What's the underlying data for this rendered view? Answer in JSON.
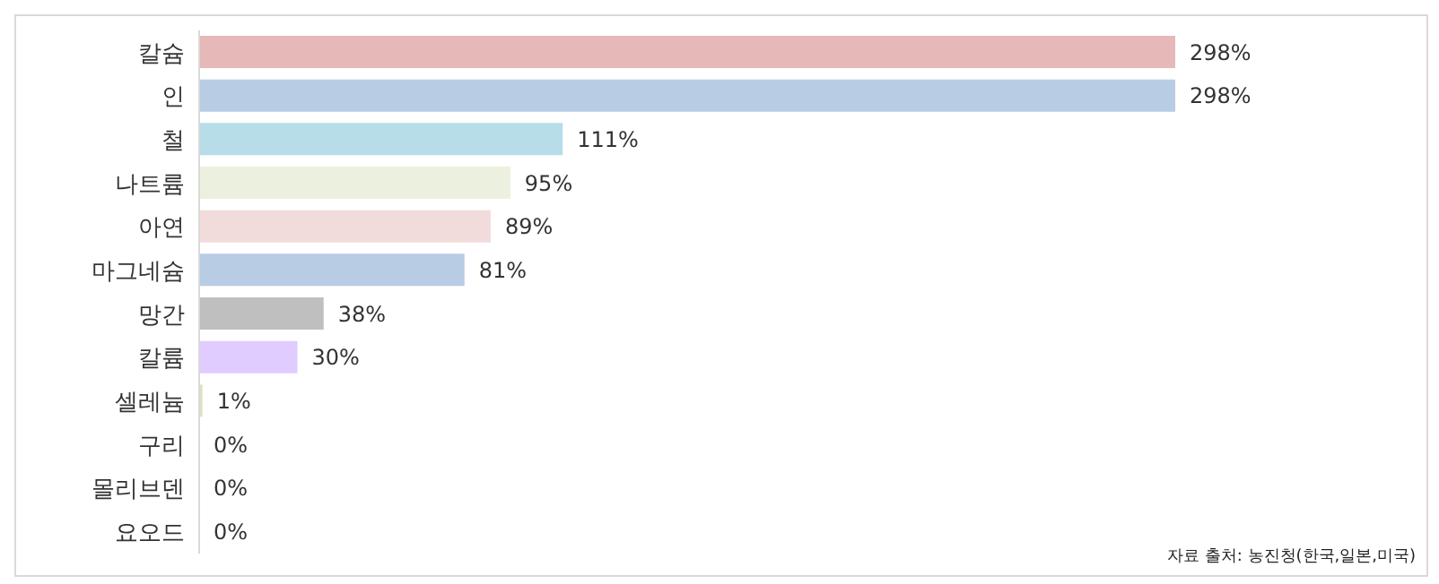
{
  "chart_data": {
    "type": "bar",
    "orientation": "horizontal",
    "categories": [
      "칼슘",
      "인",
      "철",
      "나트륨",
      "아연",
      "마그네슘",
      "망간",
      "칼륨",
      "셀레늄",
      "구리",
      "몰리브덴",
      "요오드"
    ],
    "values": [
      298,
      298,
      111,
      95,
      89,
      81,
      38,
      30,
      1,
      0,
      0,
      0
    ],
    "colors": [
      "#e6b8b7",
      "#b8cce4",
      "#b7dde8",
      "#ebf1de",
      "#f2dcdb",
      "#b8cce4",
      "#bfbfbf",
      "#e0ccff",
      "#d8e4bc",
      "#4f81bd",
      "#b8cce4",
      "#b8cce4"
    ],
    "value_labels": [
      "298%",
      "298%",
      "111%",
      "95%",
      "89%",
      "81%",
      "38%",
      "30%",
      "1%",
      "0%",
      "0%",
      "0%"
    ],
    "annotations": [
      "자료 출처: 농진청(한국,일본,미국)"
    ]
  }
}
